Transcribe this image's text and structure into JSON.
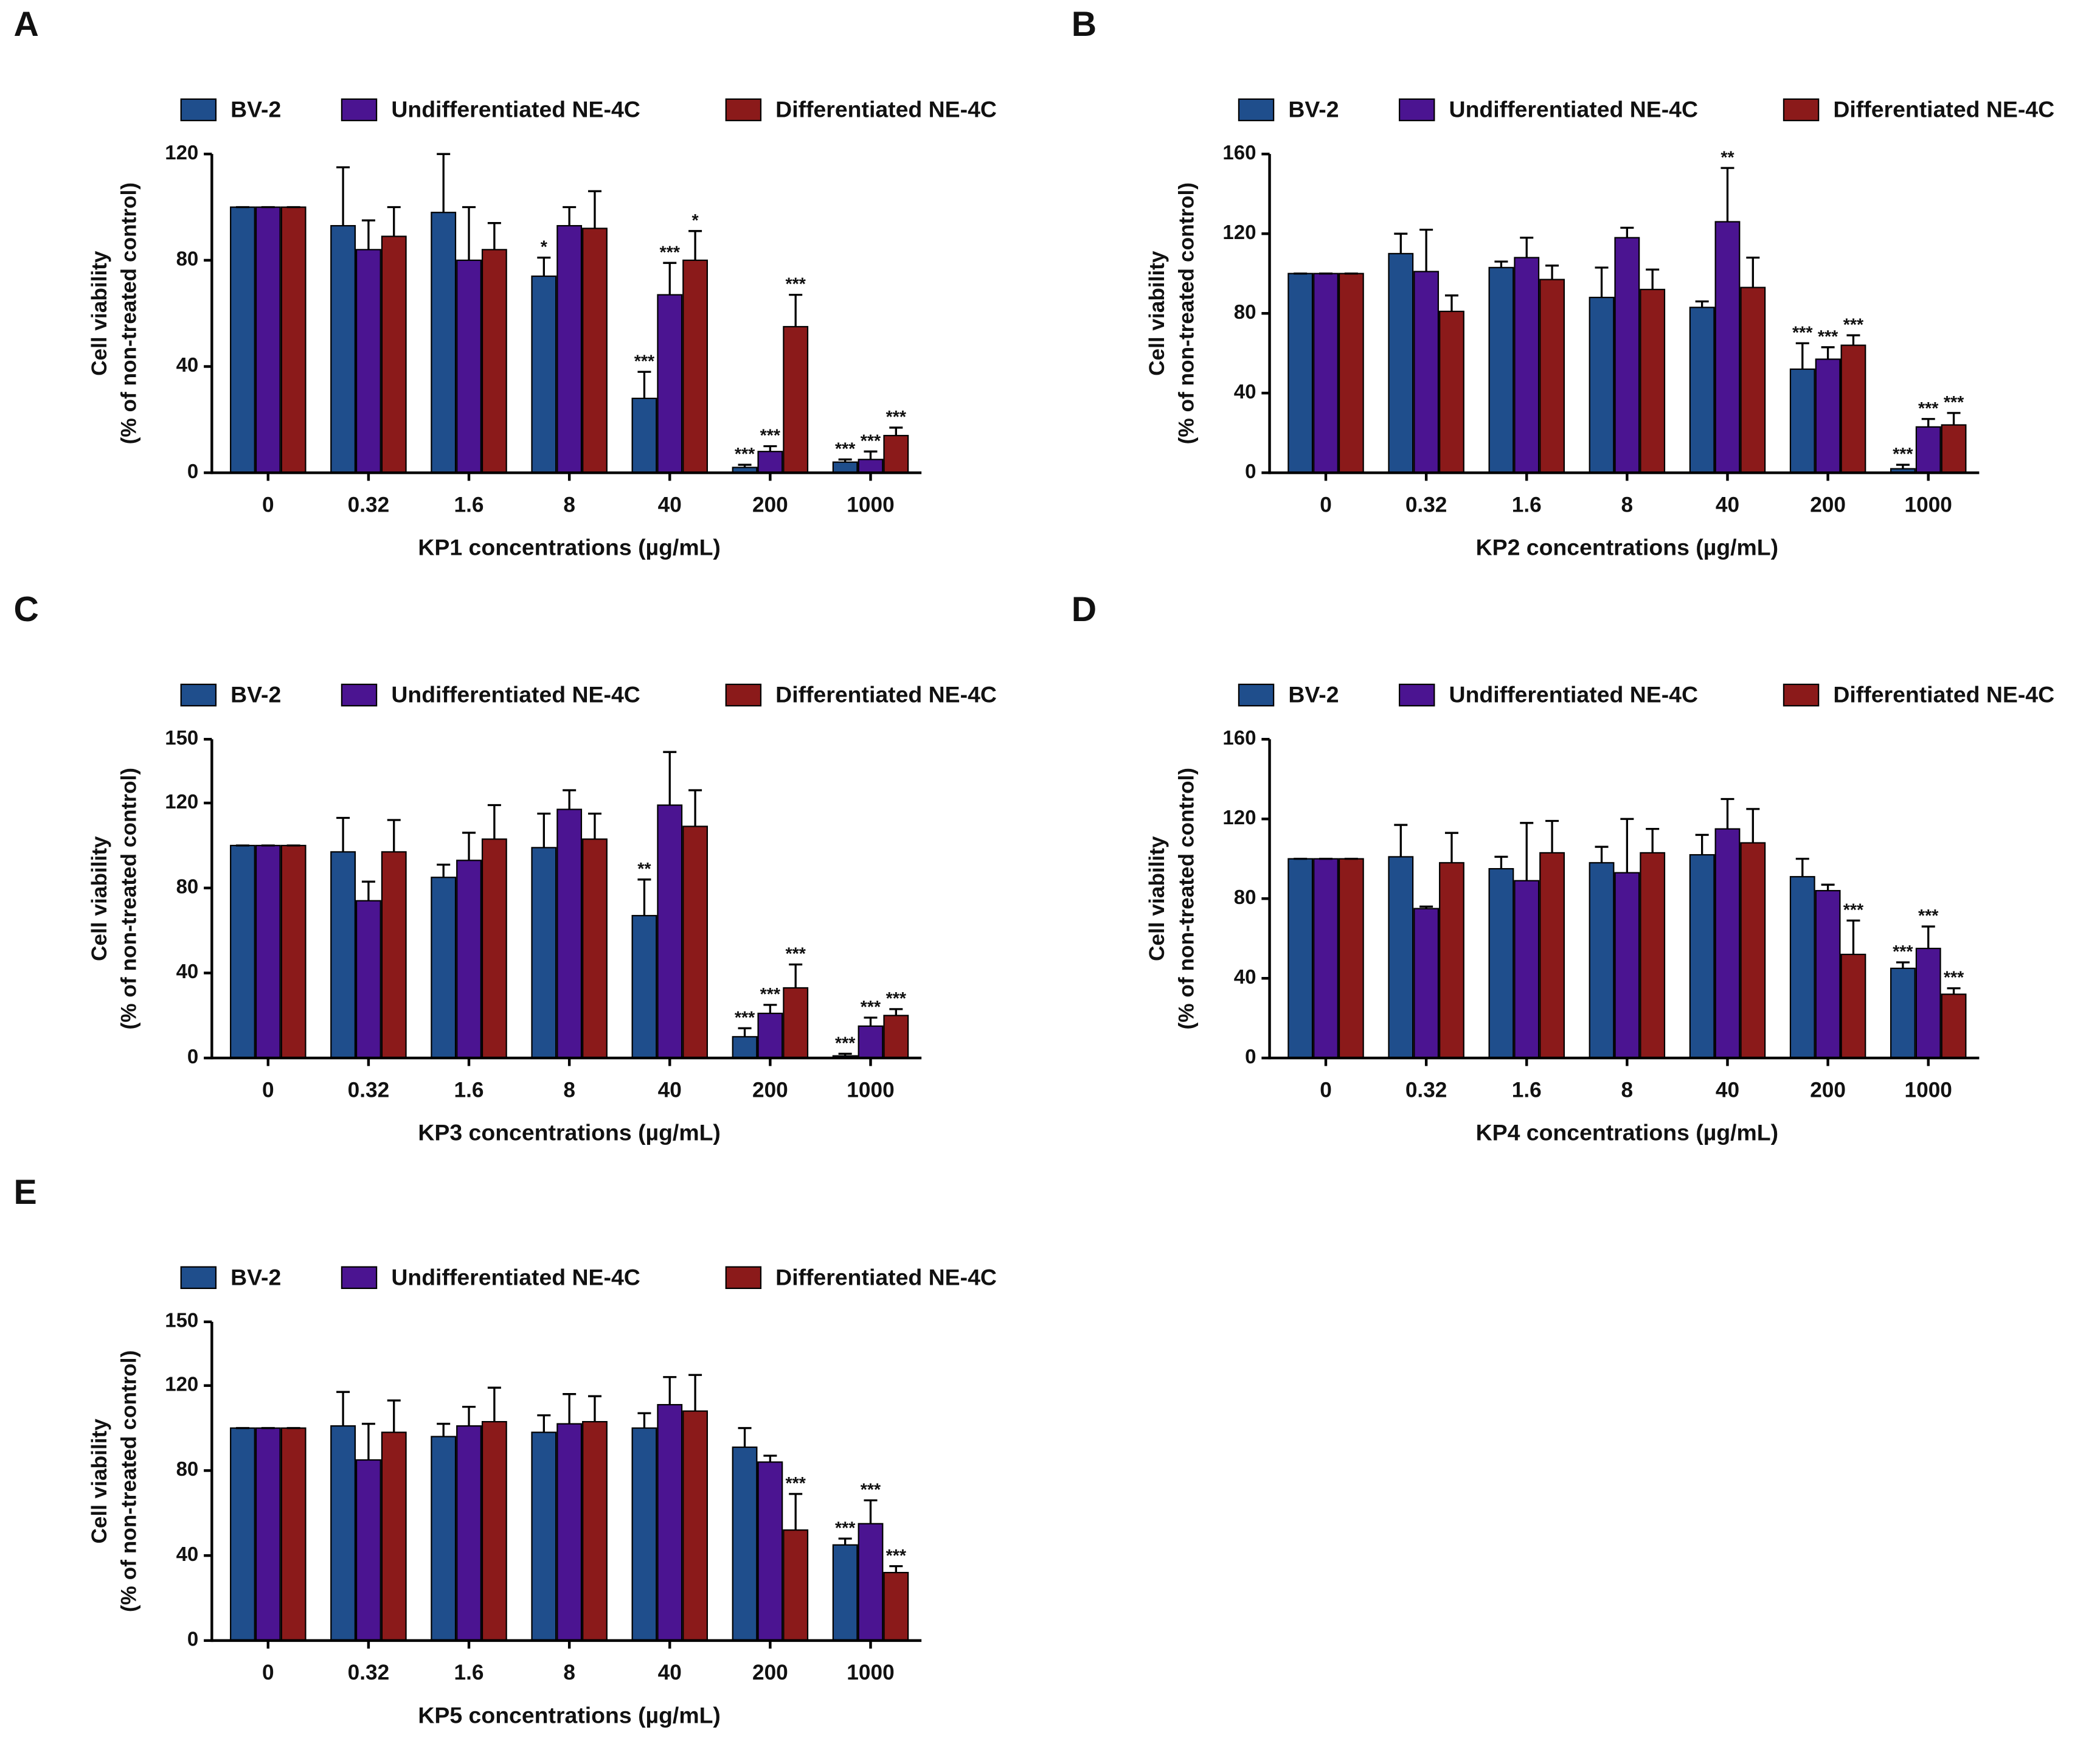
{
  "chart_data": [
    {
      "panel": "A",
      "type": "bar",
      "xlabel": "KP1 concentrations (µg/mL)",
      "ylabel": [
        "Cell viability",
        "(% of non-treated control)"
      ],
      "categories": [
        "0",
        "0.32",
        "1.6",
        "8",
        "40",
        "200",
        "1000"
      ],
      "ylim": [
        0,
        120
      ],
      "yticks": [
        0,
        40,
        80,
        120
      ],
      "series": [
        {
          "name": "BV-2",
          "color": "#1f4e8c",
          "values": [
            100,
            93,
            98,
            74,
            28,
            2,
            4
          ],
          "errors": [
            0,
            22,
            22,
            7,
            10,
            1,
            1
          ],
          "annotations": [
            null,
            null,
            null,
            "*",
            "***",
            "***",
            "***"
          ]
        },
        {
          "name": "Undifferentiated NE-4C",
          "color": "#4b1491",
          "values": [
            100,
            84,
            80,
            93,
            67,
            8,
            5
          ],
          "errors": [
            0,
            11,
            20,
            7,
            12,
            2,
            3
          ],
          "annotations": [
            null,
            null,
            null,
            null,
            "***",
            "***",
            "***"
          ]
        },
        {
          "name": "Differentiated NE-4C",
          "color": "#8b1a1a",
          "values": [
            100,
            89,
            84,
            92,
            80,
            55,
            14
          ],
          "errors": [
            0,
            11,
            10,
            14,
            11,
            12,
            3
          ],
          "annotations": [
            null,
            null,
            null,
            null,
            "*",
            "***",
            "***"
          ]
        }
      ]
    },
    {
      "panel": "B",
      "type": "bar",
      "xlabel": "KP2 concentrations (µg/mL)",
      "ylabel": [
        "Cell viability",
        "(% of non-treated control)"
      ],
      "categories": [
        "0",
        "0.32",
        "1.6",
        "8",
        "40",
        "200",
        "1000"
      ],
      "ylim": [
        0,
        160
      ],
      "yticks": [
        0,
        40,
        80,
        120,
        160
      ],
      "series": [
        {
          "name": "BV-2",
          "color": "#1f4e8c",
          "values": [
            100,
            110,
            103,
            88,
            83,
            52,
            2
          ],
          "errors": [
            0,
            10,
            3,
            15,
            3,
            13,
            2
          ],
          "annotations": [
            null,
            null,
            null,
            null,
            null,
            "***",
            "***"
          ]
        },
        {
          "name": "Undifferentiated NE-4C",
          "color": "#4b1491",
          "values": [
            100,
            101,
            108,
            118,
            126,
            57,
            23
          ],
          "errors": [
            0,
            21,
            10,
            5,
            27,
            6,
            4
          ],
          "annotations": [
            null,
            null,
            null,
            null,
            "**",
            "***",
            "***"
          ]
        },
        {
          "name": "Differentiated NE-4C",
          "color": "#8b1a1a",
          "values": [
            100,
            81,
            97,
            92,
            93,
            64,
            24
          ],
          "errors": [
            0,
            8,
            7,
            10,
            15,
            5,
            6
          ],
          "annotations": [
            null,
            null,
            null,
            null,
            null,
            "***",
            "***"
          ]
        }
      ]
    },
    {
      "panel": "C",
      "type": "bar",
      "xlabel": "KP3 concentrations (µg/mL)",
      "ylabel": [
        "Cell viability",
        "(% of non-treated control)"
      ],
      "categories": [
        "0",
        "0.32",
        "1.6",
        "8",
        "40",
        "200",
        "1000"
      ],
      "ylim": [
        0,
        150
      ],
      "yticks": [
        0,
        40,
        80,
        120,
        150
      ],
      "series": [
        {
          "name": "BV-2",
          "color": "#1f4e8c",
          "values": [
            100,
            97,
            85,
            99,
            67,
            10,
            1
          ],
          "errors": [
            0,
            16,
            6,
            16,
            17,
            4,
            1
          ],
          "annotations": [
            null,
            null,
            null,
            null,
            "**",
            "***",
            "***"
          ]
        },
        {
          "name": "Undifferentiated NE-4C",
          "color": "#4b1491",
          "values": [
            100,
            74,
            93,
            117,
            119,
            21,
            15
          ],
          "errors": [
            0,
            9,
            13,
            9,
            25,
            4,
            4
          ],
          "annotations": [
            null,
            null,
            null,
            null,
            null,
            "***",
            "***"
          ]
        },
        {
          "name": "Differentiated NE-4C",
          "color": "#8b1a1a",
          "values": [
            100,
            97,
            103,
            103,
            109,
            33,
            20
          ],
          "errors": [
            0,
            15,
            16,
            12,
            17,
            11,
            3
          ],
          "annotations": [
            null,
            null,
            null,
            null,
            null,
            "***",
            "***"
          ]
        }
      ]
    },
    {
      "panel": "D",
      "type": "bar",
      "xlabel": "KP4 concentrations (µg/mL)",
      "ylabel": [
        "Cell viability",
        "(% of non-treated control)"
      ],
      "categories": [
        "0",
        "0.32",
        "1.6",
        "8",
        "40",
        "200",
        "1000"
      ],
      "ylim": [
        0,
        160
      ],
      "yticks": [
        0,
        40,
        80,
        120,
        160
      ],
      "series": [
        {
          "name": "BV-2",
          "color": "#1f4e8c",
          "values": [
            100,
            101,
            95,
            98,
            102,
            91,
            45
          ],
          "errors": [
            0,
            16,
            6,
            8,
            10,
            9,
            3
          ],
          "annotations": [
            null,
            null,
            null,
            null,
            null,
            null,
            "***"
          ]
        },
        {
          "name": "Undifferentiated NE-4C",
          "color": "#4b1491",
          "values": [
            100,
            75,
            89,
            93,
            115,
            84,
            55
          ],
          "errors": [
            0,
            1,
            29,
            27,
            15,
            3,
            11
          ],
          "annotations": [
            null,
            null,
            null,
            null,
            null,
            null,
            "***"
          ]
        },
        {
          "name": "Differentiated NE-4C",
          "color": "#8b1a1a",
          "values": [
            100,
            98,
            103,
            103,
            108,
            52,
            32
          ],
          "errors": [
            0,
            15,
            16,
            12,
            17,
            17,
            3
          ],
          "annotations": [
            null,
            null,
            null,
            null,
            null,
            "***",
            "***"
          ]
        }
      ]
    },
    {
      "panel": "E",
      "type": "bar",
      "xlabel": "KP5 concentrations (µg/mL)",
      "ylabel": [
        "Cell viability",
        "(% of non-treated control)"
      ],
      "categories": [
        "0",
        "0.32",
        "1.6",
        "8",
        "40",
        "200",
        "1000"
      ],
      "ylim": [
        0,
        150
      ],
      "yticks": [
        0,
        40,
        80,
        120,
        150
      ],
      "series": [
        {
          "name": "BV-2",
          "color": "#1f4e8c",
          "values": [
            100,
            101,
            96,
            98,
            100,
            91,
            45
          ],
          "errors": [
            0,
            16,
            6,
            8,
            7,
            9,
            3
          ],
          "annotations": [
            null,
            null,
            null,
            null,
            null,
            null,
            "***"
          ]
        },
        {
          "name": "Undifferentiated NE-4C",
          "color": "#4b1491",
          "values": [
            100,
            85,
            101,
            102,
            111,
            84,
            55
          ],
          "errors": [
            0,
            17,
            9,
            14,
            13,
            3,
            11
          ],
          "annotations": [
            null,
            null,
            null,
            null,
            null,
            null,
            "***"
          ]
        },
        {
          "name": "Differentiated NE-4C",
          "color": "#8b1a1a",
          "values": [
            100,
            98,
            103,
            103,
            108,
            52,
            32
          ],
          "errors": [
            0,
            15,
            16,
            12,
            17,
            17,
            3
          ],
          "annotations": [
            null,
            null,
            null,
            null,
            null,
            "***",
            "***"
          ]
        }
      ]
    }
  ]
}
